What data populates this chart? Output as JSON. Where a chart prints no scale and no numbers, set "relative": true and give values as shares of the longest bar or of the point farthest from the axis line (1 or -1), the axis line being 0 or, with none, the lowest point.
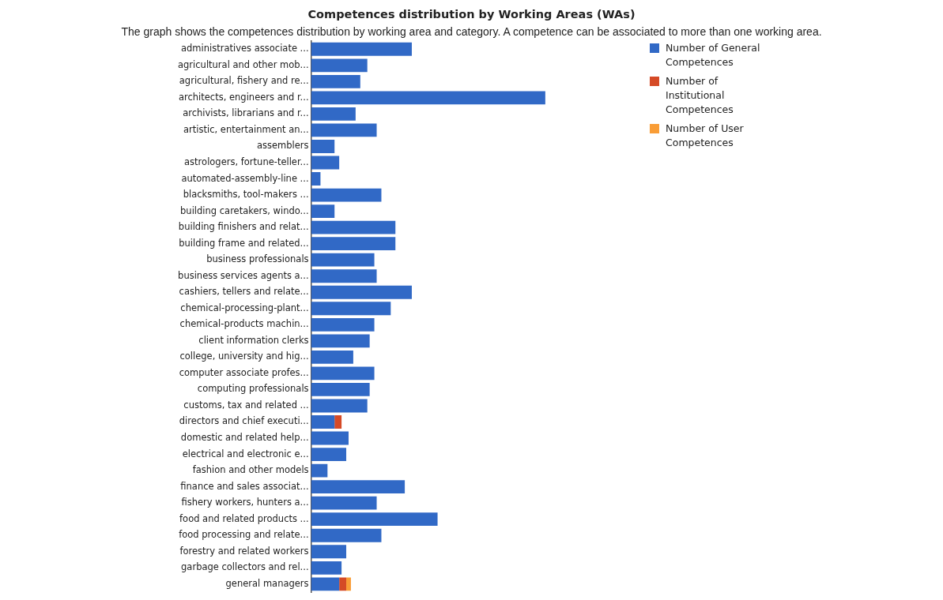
{
  "chart_data": {
    "type": "bar",
    "orientation": "horizontal",
    "stacked": true,
    "relative": true,
    "legend": "top right",
    "title": "Competences distribution by Working Areas (WAs)",
    "subtitle": "The graph shows the competences distribution by working area and category. A competence can be associated to more than one working area.",
    "categories": [
      "administratives associate ...",
      "agricultural and other mob...",
      "agricultural, fishery and re...",
      "architects, engineers and r...",
      "archivists, librarians and r...",
      "artistic, entertainment an...",
      "assemblers",
      "astrologers, fortune-teller...",
      "automated-assembly-line ...",
      "blacksmiths, tool-makers ...",
      "building caretakers, windo...",
      "building finishers and relat...",
      "building frame and related...",
      "business professionals",
      "business services agents a...",
      "cashiers, tellers and relate...",
      "chemical-processing-plant...",
      "chemical-products machin...",
      "client information clerks",
      "college, university and hig...",
      "computer associate profes...",
      "computing professionals",
      "customs, tax and related ...",
      "directors and chief executi...",
      "domestic and related help...",
      "electrical and electronic e...",
      "fashion and other models",
      "finance and sales associat...",
      "fishery workers, hunters a...",
      "food and related products ...",
      "food processing and relate...",
      "forestry and related workers",
      "garbage collectors and rel...",
      "general managers"
    ],
    "series": [
      {
        "name": "Number of General Competences",
        "color": "#3169c6",
        "values": [
          0.43,
          0.24,
          0.21,
          1,
          0.19,
          0.28,
          0.1,
          0.12,
          0.04,
          0.3,
          0.1,
          0.36,
          0.36,
          0.27,
          0.28,
          0.43,
          0.34,
          0.27,
          0.25,
          0.18,
          0.27,
          0.25,
          0.24,
          0.1,
          0.16,
          0.15,
          0.07,
          0.4,
          0.28,
          0.54,
          0.3,
          0.15,
          0.13,
          0.12
        ]
      },
      {
        "name": "Number of Institutional Competences",
        "color": "#d54a26",
        "values": [
          null,
          null,
          null,
          null,
          null,
          null,
          null,
          null,
          null,
          null,
          null,
          null,
          null,
          null,
          null,
          null,
          null,
          null,
          null,
          null,
          null,
          null,
          null,
          0.03,
          null,
          null,
          null,
          null,
          null,
          null,
          null,
          null,
          null,
          0.03
        ]
      },
      {
        "name": "Number of User Competences",
        "color": "#f99d36",
        "values": [
          null,
          null,
          null,
          null,
          null,
          null,
          null,
          null,
          null,
          null,
          null,
          null,
          null,
          null,
          null,
          null,
          null,
          null,
          null,
          null,
          null,
          null,
          null,
          null,
          null,
          null,
          null,
          null,
          null,
          null,
          null,
          null,
          null,
          0.02
        ]
      }
    ]
  }
}
